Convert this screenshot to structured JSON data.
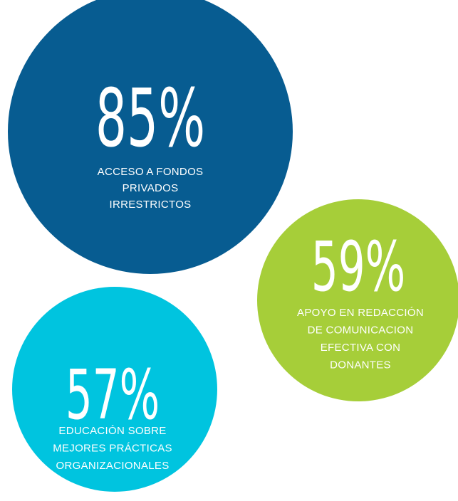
{
  "items": [
    {
      "value": "85%",
      "lines": [
        "ACCESO A FONDOS",
        "PRIVADOS",
        "IRRESTRICTOS"
      ]
    },
    {
      "value": "59%",
      "lines": [
        "APOYO EN REDACCIÓN",
        "DE COMUNICACION",
        "EFECTIVA CON",
        "DONANTES"
      ]
    },
    {
      "value": "57%",
      "lines": [
        "EDUCACIÓN SOBRE",
        "MEJORES PRÁCTICAS",
        "ORGANIZACIONALES"
      ]
    }
  ]
}
